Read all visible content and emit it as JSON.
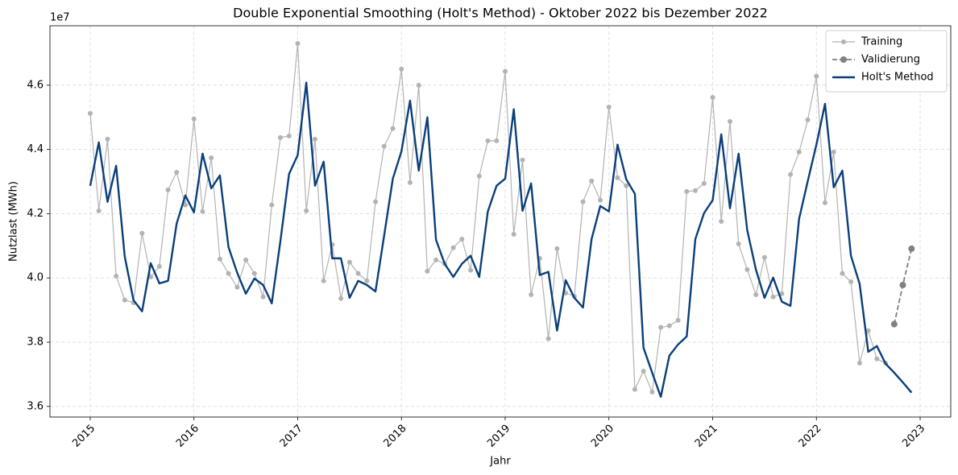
{
  "chart_data": {
    "type": "line",
    "title": "Double Exponential Smoothing (Holt's Method) - Oktober 2022 bis Dezember 2022",
    "xlabel": "Jahr",
    "ylabel": "Nutzlast (MWh)",
    "y_offset_text": "1e7",
    "x": [
      2015,
      2015.083,
      2015.167,
      2015.25,
      2015.333,
      2015.417,
      2015.5,
      2015.583,
      2015.667,
      2015.75,
      2015.833,
      2015.917,
      2016,
      2016.083,
      2016.167,
      2016.25,
      2016.333,
      2016.417,
      2016.5,
      2016.583,
      2016.667,
      2016.75,
      2016.833,
      2016.917,
      2017,
      2017.083,
      2017.167,
      2017.25,
      2017.333,
      2017.417,
      2017.5,
      2017.583,
      2017.667,
      2017.75,
      2017.833,
      2017.917,
      2018,
      2018.083,
      2018.167,
      2018.25,
      2018.333,
      2018.417,
      2018.5,
      2018.583,
      2018.667,
      2018.75,
      2018.833,
      2018.917,
      2019,
      2019.083,
      2019.167,
      2019.25,
      2019.333,
      2019.417,
      2019.5,
      2019.583,
      2019.667,
      2019.75,
      2019.833,
      2019.917,
      2020,
      2020.083,
      2020.167,
      2020.25,
      2020.333,
      2020.417,
      2020.5,
      2020.583,
      2020.667,
      2020.75,
      2020.833,
      2020.917,
      2021,
      2021.083,
      2021.167,
      2021.25,
      2021.333,
      2021.417,
      2021.5,
      2021.583,
      2021.667,
      2021.75,
      2021.833,
      2021.917,
      2022,
      2022.083,
      2022.167,
      2022.25,
      2022.333,
      2022.417,
      2022.5,
      2022.583,
      2022.667,
      2022.75,
      2022.833,
      2022.917
    ],
    "series": [
      {
        "name": "Training",
        "color": "#b3b3b3",
        "marker": "o",
        "linestyle": "solid",
        "linewidth": 1.2,
        "values": [
          4.512,
          4.209,
          4.432,
          4.006,
          3.931,
          3.923,
          4.139,
          4.003,
          4.036,
          4.274,
          4.329,
          4.227,
          4.495,
          4.207,
          4.374,
          4.059,
          4.014,
          3.971,
          4.056,
          4.014,
          3.941,
          4.227,
          4.437,
          4.442,
          4.73,
          4.209,
          4.432,
          3.991,
          4.104,
          3.936,
          4.049,
          4.014,
          3.991,
          4.237,
          4.41,
          4.465,
          4.65,
          4.297,
          4.6,
          4.021,
          4.056,
          4.044,
          4.094,
          4.121,
          4.024,
          4.317,
          4.427,
          4.427,
          4.643,
          4.136,
          4.367,
          3.948,
          4.061,
          3.811,
          4.091,
          3.953,
          3.943,
          4.237,
          4.302,
          4.242,
          4.532,
          4.312,
          4.287,
          3.653,
          3.71,
          3.645,
          3.846,
          3.851,
          3.868,
          4.269,
          4.272,
          4.294,
          4.562,
          4.176,
          4.487,
          4.106,
          4.026,
          3.948,
          4.064,
          3.941,
          3.951,
          4.322,
          4.392,
          4.492,
          4.628,
          4.234,
          4.392,
          4.014,
          3.988,
          3.735,
          3.836,
          3.748,
          3.735,
          null,
          null,
          null
        ]
      },
      {
        "name": "Validierung",
        "color": "#808080",
        "marker": "o",
        "linestyle": "dashed",
        "linewidth": 1.8,
        "values": [
          null,
          null,
          null,
          null,
          null,
          null,
          null,
          null,
          null,
          null,
          null,
          null,
          null,
          null,
          null,
          null,
          null,
          null,
          null,
          null,
          null,
          null,
          null,
          null,
          null,
          null,
          null,
          null,
          null,
          null,
          null,
          null,
          null,
          null,
          null,
          null,
          null,
          null,
          null,
          null,
          null,
          null,
          null,
          null,
          null,
          null,
          null,
          null,
          null,
          null,
          null,
          null,
          null,
          null,
          null,
          null,
          null,
          null,
          null,
          null,
          null,
          null,
          null,
          null,
          null,
          null,
          null,
          null,
          null,
          null,
          null,
          null,
          null,
          null,
          null,
          null,
          null,
          null,
          null,
          null,
          null,
          null,
          null,
          null,
          null,
          null,
          null,
          null,
          null,
          null,
          null,
          null,
          null,
          3.856,
          3.978,
          4.091
        ]
      },
      {
        "name": "Holt's Method",
        "color": "#0a3f7a",
        "marker": null,
        "linestyle": "solid",
        "linewidth": 2.4,
        "values": [
          4.287,
          4.422,
          4.237,
          4.349,
          4.066,
          3.931,
          3.896,
          4.046,
          3.983,
          3.991,
          4.169,
          4.257,
          4.204,
          4.387,
          4.279,
          4.319,
          4.096,
          4.016,
          3.951,
          3.998,
          3.978,
          3.921,
          4.114,
          4.324,
          4.382,
          4.608,
          4.287,
          4.362,
          4.061,
          4.061,
          3.938,
          3.991,
          3.978,
          3.958,
          4.131,
          4.309,
          4.394,
          4.552,
          4.334,
          4.5,
          4.119,
          4.044,
          4.003,
          4.044,
          4.069,
          4.003,
          4.207,
          4.287,
          4.309,
          4.525,
          4.209,
          4.294,
          4.009,
          4.019,
          3.836,
          3.993,
          3.938,
          3.908,
          4.121,
          4.224,
          4.207,
          4.415,
          4.307,
          4.262,
          3.783,
          3.705,
          3.63,
          3.758,
          3.793,
          3.818,
          4.121,
          4.202,
          4.242,
          4.447,
          4.217,
          4.387,
          4.149,
          4.026,
          3.938,
          4.001,
          3.926,
          3.913,
          4.184,
          4.302,
          4.415,
          4.542,
          4.282,
          4.334,
          4.069,
          3.981,
          3.77,
          3.788,
          3.733,
          3.705,
          3.675,
          3.643
        ]
      }
    ],
    "xlim": [
      2014.612,
      2023.295
    ],
    "xticks": [
      2015,
      2016,
      2017,
      2018,
      2019,
      2020,
      2021,
      2022,
      2023
    ],
    "ylim": [
      3.567,
      4.785
    ],
    "yticks": [
      3.6,
      3.8,
      {
        "value": 4,
        "label": "4.0"
      },
      4.2,
      4.4,
      4.6
    ],
    "grid": true,
    "legend": "upper right"
  }
}
